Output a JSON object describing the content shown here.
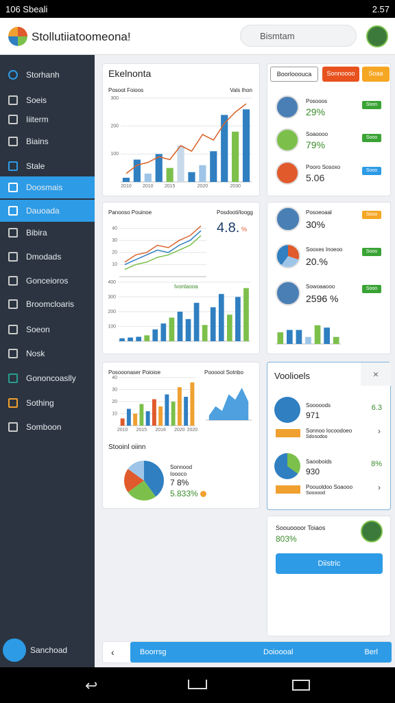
{
  "status_bar": {
    "carrier": "106 Sbeali",
    "time": "2.57"
  },
  "header": {
    "app_name": "Stollutiiatoomeona!",
    "search": "Bismtam"
  },
  "sidebar": {
    "items": [
      "Storhanh",
      "Soeis",
      "Iiiterm",
      "Biains",
      "Stale",
      "Doosmais",
      "Dauoada",
      "Bibira",
      "Dmodads",
      "Gonceioros",
      "Broomcloaris",
      "Soeon",
      "Nosk",
      "Gononcoaslly",
      "Sothing",
      "Somboon"
    ],
    "footer": "Sanchoad"
  },
  "cards": {
    "overview": {
      "title": "Ekelnonta",
      "subtitle": "Posoot Foioos",
      "legend": "Vals Ihon"
    },
    "performance": {
      "title": "Panooso Pouinoe",
      "label": "Posdooti/loogg",
      "big_value": "4.8.",
      "unit": "%",
      "bars_title": "Ivonlaooa"
    },
    "summary": {
      "title": "Posooonaser Poioioe",
      "area_title": "Poooool Sotnbo",
      "pie_title": "Stooinl oiinn",
      "pie_label": "Sonnood",
      "pie_sublabel": "Ioooco",
      "pie_value": "7 8%",
      "pie_total": "5.833%"
    }
  },
  "right": {
    "tabs": [
      "Boorlooouca",
      "Sonnoooo",
      "Soaa"
    ],
    "people": [
      {
        "name": "Posooos",
        "value": "29%",
        "badge": "Soon"
      },
      {
        "name": "Soaoooo",
        "value": "79%",
        "badge": "Sooo"
      },
      {
        "name": "Pooro Sosoxo",
        "value": "5.06",
        "badge": "Sooo"
      }
    ],
    "stats": [
      {
        "name": "Posoeoaal",
        "value": "30%",
        "badge": "Sooo"
      },
      {
        "name": "Sooxes Inoeoo",
        "value": "20.%",
        "badge": "Sooo"
      },
      {
        "name": "Sowoaaooo",
        "value": "2596 %",
        "badge": "Sooo"
      }
    ],
    "details": {
      "title": "Voolioels",
      "items": [
        {
          "name": "Sooooods",
          "value": "971",
          "extra": "6.3"
        },
        {
          "name": "Sonnoo Iocoodoeo",
          "value": "Sdosodoo"
        },
        {
          "name": "Saooboids",
          "value": "930",
          "extra": "8%"
        },
        {
          "name": "Poouoldoo Soaooo",
          "value": "Soooood"
        }
      ]
    },
    "profile": {
      "title": "Soouoooor Toiaos",
      "value": "803%",
      "button": "Diistric"
    }
  },
  "bottom_bar": {
    "left": "Boorrsg",
    "center": "Doioooal",
    "right": "Berl"
  },
  "charts": [
    {
      "type": "bar",
      "categories": [
        "2010",
        null,
        "2010",
        null,
        "2015",
        null,
        null,
        "2020",
        null,
        null,
        "2030",
        null
      ],
      "values": [
        15,
        80,
        30,
        100,
        50,
        130,
        35,
        60,
        110,
        240,
        180,
        260
      ],
      "colors": [
        "#2f7fc1",
        "#2f7fc1",
        "#9ec5e8",
        "#2f7fc1",
        "#7cc04b",
        "#c7d9ea",
        "#2f7fc1",
        "#9ec5e8",
        "#2f7fc1",
        "#2f7fc1",
        "#7cc04b",
        "#2f7fc1"
      ],
      "ylim": [
        0,
        300
      ],
      "yticks": [
        100,
        200,
        300
      ],
      "line": {
        "color": "#d9642b",
        "values": [
          30,
          60,
          70,
          90,
          80,
          130,
          110,
          170,
          150,
          210,
          250,
          280
        ]
      }
    },
    {
      "type": "line",
      "ylim": [
        0,
        50
      ],
      "yticks": [
        10,
        20,
        30,
        40
      ],
      "series": [
        {
          "color": "#d9642b",
          "values": [
            12,
            18,
            20,
            26,
            24,
            30,
            34,
            42
          ]
        },
        {
          "color": "#2f7fc1",
          "values": [
            10,
            14,
            18,
            22,
            20,
            26,
            30,
            38
          ]
        },
        {
          "color": "#7cc04b",
          "values": [
            6,
            10,
            12,
            16,
            18,
            22,
            26,
            34
          ]
        }
      ]
    },
    {
      "type": "bar",
      "values": [
        20,
        25,
        30,
        40,
        80,
        120,
        160,
        200,
        150,
        260,
        110,
        230,
        320,
        180,
        300,
        360
      ],
      "colors": [
        "#2f7fc1",
        "#2f7fc1",
        "#2f7fc1",
        "#7cc04b",
        "#2f7fc1",
        "#2f7fc1",
        "#7cc04b",
        "#2f7fc1",
        "#2f7fc1",
        "#2f7fc1",
        "#7cc04b",
        "#2f7fc1",
        "#2f7fc1",
        "#7cc04b",
        "#2f7fc1",
        "#7cc04b"
      ],
      "ylim": [
        0,
        400
      ],
      "yticks": [
        100,
        200,
        300,
        400
      ]
    },
    {
      "type": "bar",
      "categories": [
        "2010",
        null,
        null,
        "2015",
        null,
        null,
        "2016",
        null,
        null,
        "2020",
        null,
        "2020"
      ],
      "values": [
        6,
        14,
        10,
        18,
        12,
        22,
        16,
        26,
        20,
        32,
        24,
        36
      ],
      "colors": [
        "#e05a2b",
        "#2f7fc1",
        "#f0a030",
        "#7cc04b",
        "#2f7fc1",
        "#e05a2b",
        "#f0a030",
        "#2f7fc1",
        "#7cc04b",
        "#f0a030",
        "#2f7fc1",
        "#f0a030"
      ],
      "ylim": [
        0,
        40
      ],
      "yticks": [
        10,
        20,
        30,
        40
      ]
    },
    {
      "type": "area",
      "values": [
        5,
        15,
        10,
        28,
        22,
        35,
        20
      ],
      "color": "#2f8fd8",
      "ylim": [
        0,
        40
      ]
    },
    {
      "type": "pie",
      "values": [
        40,
        25,
        20,
        15
      ],
      "colors": [
        "#2f7fc1",
        "#7cc04b",
        "#e05a2b",
        "#9ec5e8"
      ]
    },
    {
      "type": "bar",
      "values": [
        5,
        6,
        6,
        3,
        8,
        7,
        3
      ],
      "colors": [
        "#7cc04b",
        "#2f7fc1",
        "#2f7fc1",
        "#9ec5e8",
        "#7cc04b",
        "#2f7fc1",
        "#7cc04b"
      ],
      "ylim": [
        0,
        10
      ]
    }
  ]
}
